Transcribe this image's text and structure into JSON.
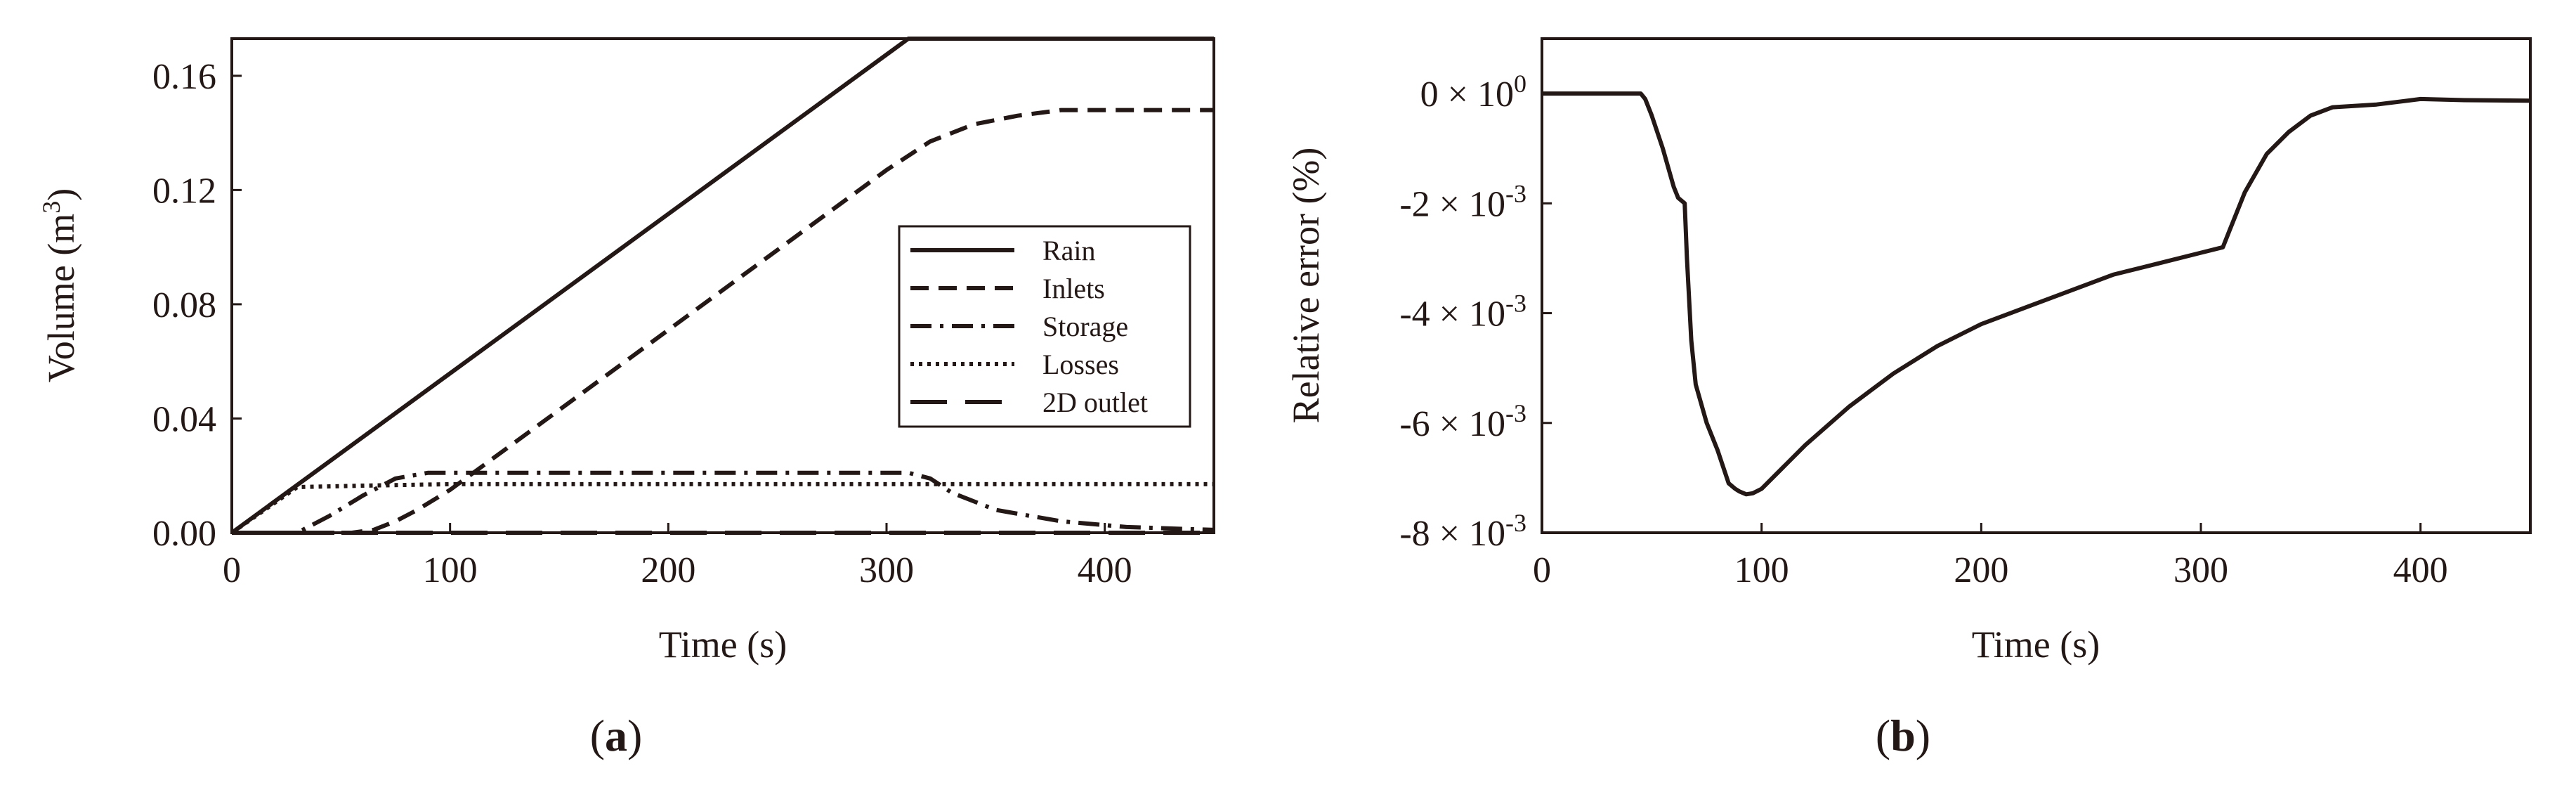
{
  "figure": {
    "colors": {
      "ink": "#231815",
      "background": "#ffffff"
    }
  },
  "chart_data": [
    {
      "type": "line",
      "panel": {
        "open": "(",
        "letter": "a",
        "close": ")"
      },
      "xlabel": "Time (s)",
      "ylabel": {
        "text": "Volume (m",
        "sup": "3",
        "end": ")"
      },
      "xlim": [
        0,
        450
      ],
      "ylim": [
        0,
        0.173
      ],
      "xticks": [
        0,
        100,
        200,
        300,
        400
      ],
      "xtick_labels": [
        "0",
        "100",
        "200",
        "300",
        "400"
      ],
      "yticks": [
        0.0,
        0.04,
        0.08,
        0.12,
        0.16
      ],
      "ytick_labels": [
        "0.00",
        "0.04",
        "0.08",
        "0.12",
        "0.16"
      ],
      "grid": false,
      "legend": "center-right",
      "series": [
        {
          "name": "Rain",
          "style": "solid",
          "points": [
            [
              0,
              0.0
            ],
            [
              310,
              0.173
            ],
            [
              450,
              0.173
            ]
          ]
        },
        {
          "name": "Inlets",
          "style": "dashed",
          "points": [
            [
              0,
              0.0
            ],
            [
              45,
              0.0
            ],
            [
              55,
              0.0
            ],
            [
              65,
              0.001
            ],
            [
              75,
              0.004
            ],
            [
              85,
              0.008
            ],
            [
              100,
              0.015
            ],
            [
              150,
              0.043
            ],
            [
              200,
              0.071
            ],
            [
              250,
              0.099
            ],
            [
              300,
              0.127
            ],
            [
              310,
              0.132
            ],
            [
              320,
              0.137
            ],
            [
              340,
              0.143
            ],
            [
              360,
              0.146
            ],
            [
              380,
              0.148
            ],
            [
              450,
              0.148
            ]
          ]
        },
        {
          "name": "Storage",
          "style": "dash-dot",
          "points": [
            [
              0,
              0.0
            ],
            [
              30,
              0.0
            ],
            [
              45,
              0.006
            ],
            [
              60,
              0.013
            ],
            [
              75,
              0.019
            ],
            [
              90,
              0.021
            ],
            [
              100,
              0.021
            ],
            [
              310,
              0.021
            ],
            [
              320,
              0.019
            ],
            [
              330,
              0.014
            ],
            [
              350,
              0.008
            ],
            [
              380,
              0.004
            ],
            [
              410,
              0.002
            ],
            [
              450,
              0.001
            ]
          ]
        },
        {
          "name": "Losses",
          "style": "dotted",
          "points": [
            [
              0,
              0.0
            ],
            [
              30,
              0.016
            ],
            [
              60,
              0.0165
            ],
            [
              100,
              0.017
            ],
            [
              200,
              0.017
            ],
            [
              300,
              0.017
            ],
            [
              450,
              0.017
            ]
          ]
        },
        {
          "name": "2D outlet",
          "style": "long-dash",
          "points": [
            [
              0,
              0.0
            ],
            [
              450,
              0.0
            ]
          ]
        }
      ]
    },
    {
      "type": "line",
      "panel": {
        "open": "(",
        "letter": "b",
        "close": ")"
      },
      "xlabel": "Time (s)",
      "ylabel": "Relative error (%)",
      "xlim": [
        0,
        450
      ],
      "ylim": [
        -0.008,
        0.001
      ],
      "xticks": [
        0,
        100,
        200,
        300,
        400
      ],
      "xtick_labels": [
        "0",
        "100",
        "200",
        "300",
        "400"
      ],
      "yticks": [
        0,
        -0.002,
        -0.004,
        -0.006,
        -0.008
      ],
      "ytick_labels": [
        {
          "base": "0 × 10",
          "exp": "0"
        },
        {
          "base": "-2 × 10",
          "exp": "-3"
        },
        {
          "base": "-4 × 10",
          "exp": "-3"
        },
        {
          "base": "-6 × 10",
          "exp": "-3"
        },
        {
          "base": "-8 × 10",
          "exp": "-3"
        }
      ],
      "grid": false,
      "series": [
        {
          "style": "solid",
          "points": [
            [
              0,
              0.0
            ],
            [
              45,
              0.0
            ],
            [
              47,
              -0.0001
            ],
            [
              50,
              -0.0004
            ],
            [
              55,
              -0.001
            ],
            [
              60,
              -0.0017
            ],
            [
              62,
              -0.0019
            ],
            [
              65,
              -0.002
            ],
            [
              66,
              -0.003
            ],
            [
              68,
              -0.0045
            ],
            [
              70,
              -0.0053
            ],
            [
              75,
              -0.006
            ],
            [
              80,
              -0.0065
            ],
            [
              85,
              -0.0071
            ],
            [
              88,
              -0.0072
            ],
            [
              90,
              -0.00725
            ],
            [
              93,
              -0.0073
            ],
            [
              96,
              -0.00728
            ],
            [
              100,
              -0.0072
            ],
            [
              110,
              -0.0068
            ],
            [
              120,
              -0.0064
            ],
            [
              140,
              -0.0057
            ],
            [
              160,
              -0.0051
            ],
            [
              180,
              -0.0046
            ],
            [
              200,
              -0.0042
            ],
            [
              220,
              -0.0039
            ],
            [
              240,
              -0.0036
            ],
            [
              260,
              -0.0033
            ],
            [
              280,
              -0.0031
            ],
            [
              300,
              -0.0029
            ],
            [
              310,
              -0.0028
            ],
            [
              313,
              -0.0025
            ],
            [
              320,
              -0.0018
            ],
            [
              330,
              -0.0011
            ],
            [
              340,
              -0.0007
            ],
            [
              350,
              -0.0004
            ],
            [
              360,
              -0.00025
            ],
            [
              380,
              -0.0002
            ],
            [
              400,
              -0.0001
            ],
            [
              420,
              -0.00012
            ],
            [
              450,
              -0.00013
            ]
          ]
        }
      ]
    }
  ]
}
